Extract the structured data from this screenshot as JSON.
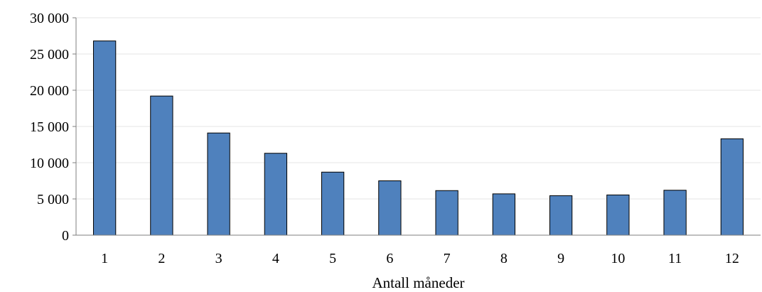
{
  "chart_data": {
    "type": "bar",
    "title": "",
    "xlabel": "Antall måneder",
    "ylabel": "",
    "categories": [
      "1",
      "2",
      "3",
      "4",
      "5",
      "6",
      "7",
      "8",
      "9",
      "10",
      "11",
      "12"
    ],
    "series": [
      {
        "values": [
          26800,
          19200,
          14100,
          11300,
          8700,
          7500,
          6150,
          5700,
          5450,
          5550,
          6200,
          13300
        ],
        "color": "#4f81bd"
      }
    ],
    "ylim": [
      0,
      30000
    ],
    "yticks": [
      0,
      5000,
      10000,
      15000,
      20000,
      25000,
      30000
    ],
    "ytick_labels": [
      "0",
      "5 000",
      "10 000",
      "15 000",
      "20 000",
      "25 000",
      "30 000"
    ],
    "grid": true,
    "legend": "none",
    "colors": {
      "bar_fill": "#4f81bd",
      "bar_stroke": "#000000",
      "grid": "#e6e6e6",
      "axis": "#7f7f7f"
    }
  }
}
